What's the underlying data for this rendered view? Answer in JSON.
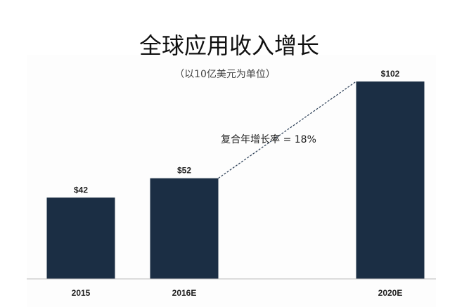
{
  "chart_data": {
    "type": "bar",
    "title": "全球应用收入增长",
    "subtitle": "（以10亿美元为单位）",
    "categories": [
      "2015",
      "2016E",
      "2020E"
    ],
    "values": [
      42,
      52,
      102
    ],
    "data_labels": [
      "$42",
      "$52",
      "$102"
    ],
    "annotation": "复合年增长率 = 18%",
    "xlabel": "",
    "ylabel": "",
    "grid": false,
    "legend": "none",
    "bar_color": "#1b2e44"
  }
}
